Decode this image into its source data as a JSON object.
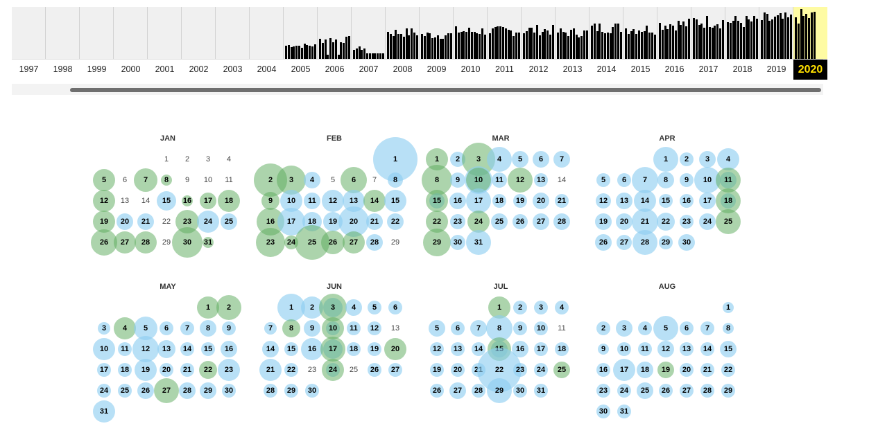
{
  "timeline": {
    "years": [
      "1997",
      "1998",
      "1999",
      "2000",
      "2001",
      "2002",
      "2003",
      "2004",
      "2005",
      "2006",
      "2007",
      "2008",
      "2009",
      "2010",
      "2011",
      "2012",
      "2013",
      "2014",
      "2015",
      "2016",
      "2017",
      "2018",
      "2019",
      "2020"
    ],
    "selected_year": "2020",
    "capture_levels": [
      0,
      0,
      0,
      0,
      0,
      0,
      0,
      0,
      0.28,
      0.4,
      0.22,
      0.55,
      0.5,
      0.58,
      0.58,
      0.6,
      0.55,
      0.65,
      0.63,
      0.72,
      0.78,
      0.78,
      0.82,
      0.88
    ],
    "bar_color": "#000000",
    "selected_color": "#fefba3",
    "selected_text_color": "#ffe000"
  },
  "calendar": {
    "colors": {
      "blue": "#8ccdf0",
      "green": "#5aaa5a"
    },
    "months": [
      {
        "name": "JAN",
        "start_weekday": 3,
        "days": 31,
        "blue": {
          "15": 14,
          "20": 12,
          "21": 12,
          "24": 16,
          "25": 12
        },
        "green": {
          "5": 16,
          "7": 17,
          "8": 8,
          "12": 16,
          "16": 8,
          "17": 12,
          "18": 16,
          "19": 16,
          "23": 17,
          "26": 19,
          "27": 16,
          "28": 16,
          "30": 22,
          "31": 8
        }
      },
      {
        "name": "FEB",
        "start_weekday": 6,
        "days": 29,
        "blue": {
          "1": 32,
          "4": 12,
          "6": 0,
          "8": 11,
          "10": 16,
          "11": 12,
          "12": 16,
          "13": 16,
          "15": 16,
          "17": 20,
          "18": 14,
          "19": 14,
          "20": 22,
          "21": 12,
          "22": 12,
          "28": 12
        },
        "green": {
          "2": 24,
          "3": 21,
          "6": 19,
          "9": 13,
          "14": 16,
          "16": 20,
          "23": 21,
          "24": 10,
          "25": 25,
          "26": 17,
          "27": 16
        }
      },
      {
        "name": "MAR",
        "start_weekday": 0,
        "days": 31,
        "blue": {
          "2": 11,
          "4": 18,
          "5": 12,
          "6": 12,
          "7": 12,
          "9": 11,
          "10": 20,
          "11": 11,
          "13": 10,
          "15": 11,
          "16": 12,
          "17": 18,
          "18": 10,
          "19": 10,
          "20": 12,
          "21": 10,
          "23": 11,
          "25": 12,
          "26": 11,
          "27": 12,
          "28": 12,
          "30": 11,
          "31": 18
        },
        "green": {
          "1": 16,
          "3": 24,
          "8": 22,
          "10": 18,
          "12": 18,
          "15": 16,
          "22": 16,
          "24": 16,
          "29": 20
        }
      },
      {
        "name": "APR",
        "start_weekday": 3,
        "days": 30,
        "blue": {
          "1": 18,
          "2": 10,
          "3": 12,
          "4": 16,
          "5": 10,
          "6": 10,
          "7": 19,
          "8": 12,
          "9": 10,
          "10": 19,
          "11": 12,
          "12": 11,
          "13": 12,
          "14": 16,
          "15": 10,
          "16": 10,
          "17": 12,
          "18": 11,
          "19": 12,
          "20": 12,
          "21": 19,
          "22": 13,
          "23": 10,
          "24": 12,
          "26": 12,
          "27": 11,
          "28": 18,
          "29": 10,
          "30": 12
        },
        "green": {
          "11": 18,
          "18": 18,
          "25": 18
        }
      },
      {
        "name": "MAY",
        "start_weekday": 5,
        "days": 31,
        "blue": {
          "3": 9,
          "5": 17,
          "6": 10,
          "7": 10,
          "8": 12,
          "9": 10,
          "10": 16,
          "11": 10,
          "12": 19,
          "13": 13,
          "14": 10,
          "15": 10,
          "16": 12,
          "17": 10,
          "18": 10,
          "19": 16,
          "20": 10,
          "21": 10,
          "23": 16,
          "24": 10,
          "25": 10,
          "26": 12,
          "28": 12,
          "29": 12,
          "30": 10,
          "31": 16
        },
        "green": {
          "1": 16,
          "2": 18,
          "4": 16,
          "22": 13,
          "27": 18
        }
      },
      {
        "name": "JUN",
        "start_weekday": 1,
        "days": 30,
        "blue": {
          "1": 20,
          "2": 16,
          "3": 14,
          "4": 12,
          "5": 10,
          "6": 10,
          "7": 9,
          "9": 12,
          "10": 10,
          "11": 10,
          "12": 10,
          "14": 12,
          "15": 10,
          "16": 16,
          "17": 14,
          "18": 10,
          "19": 10,
          "21": 16,
          "22": 10,
          "24": 10,
          "26": 10,
          "27": 10,
          "28": 10,
          "29": 10,
          "30": 10
        },
        "green": {
          "3": 20,
          "8": 13,
          "10": 16,
          "17": 18,
          "20": 16,
          "24": 16
        }
      },
      {
        "name": "JUL",
        "start_weekday": 3,
        "days": 31,
        "blue": {
          "2": 10,
          "3": 10,
          "4": 10,
          "5": 12,
          "6": 10,
          "7": 12,
          "8": 19,
          "9": 10,
          "10": 10,
          "12": 10,
          "13": 10,
          "14": 10,
          "15": 12,
          "16": 12,
          "17": 10,
          "18": 10,
          "19": 10,
          "20": 10,
          "21": 10,
          "22": 32,
          "23": 10,
          "24": 10,
          "26": 10,
          "27": 12,
          "28": 10,
          "29": 18,
          "30": 10,
          "31": 10
        },
        "green": {
          "1": 16,
          "15": 17,
          "25": 12
        }
      },
      {
        "name": "AUG",
        "start_weekday": 6,
        "days": 31,
        "blue": {
          "1": 8,
          "2": 10,
          "3": 12,
          "4": 10,
          "5": 18,
          "6": 10,
          "7": 10,
          "8": 8,
          "9": 8,
          "10": 10,
          "11": 10,
          "12": 12,
          "13": 10,
          "14": 10,
          "15": 12,
          "16": 10,
          "17": 16,
          "18": 12,
          "20": 10,
          "21": 10,
          "22": 10,
          "23": 10,
          "24": 10,
          "25": 12,
          "26": 10,
          "27": 10,
          "28": 10,
          "29": 10,
          "30": 10,
          "31": 10
        },
        "green": {
          "19": 12
        }
      }
    ]
  }
}
